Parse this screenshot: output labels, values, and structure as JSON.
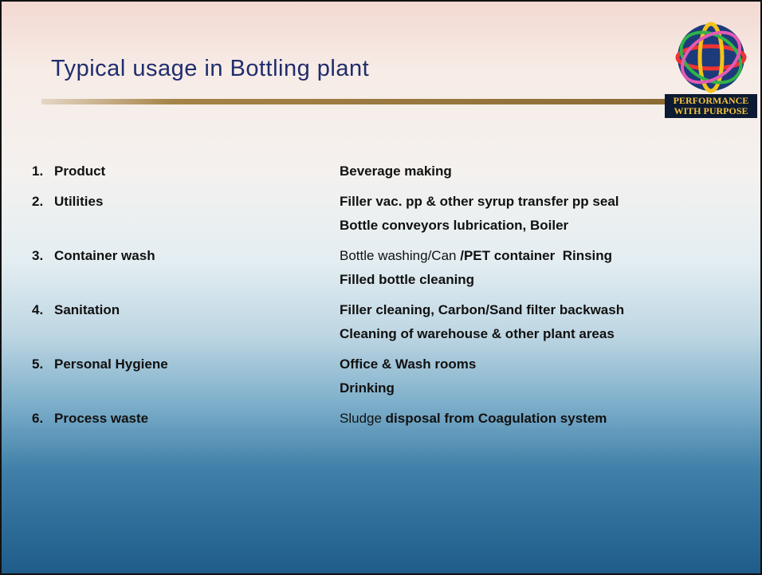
{
  "slide": {
    "title": "Typical usage in Bottling plant",
    "logo": {
      "line1": "PERFORMANCE",
      "line2": "WITH PURPOSE"
    },
    "items": [
      {
        "number": "1.",
        "label": "Product",
        "usage": [
          {
            "bold": "Beverage making"
          }
        ]
      },
      {
        "number": "2.",
        "label": "Utilities",
        "usage": [
          {
            "bold": "Filler vac. pp & other syrup transfer pp seal"
          },
          {
            "bold": "Bottle conveyors lubrication, Boiler"
          }
        ]
      },
      {
        "number": "3.",
        "label": "Container wash",
        "usage": [
          {
            "plain": "Bottle washing/Can",
            "bold": "/PET container  Rinsing"
          },
          {
            "bold": "Filled bottle cleaning"
          }
        ]
      },
      {
        "number": "4.",
        "label": "Sanitation",
        "usage": [
          {
            "bold": "Filler cleaning, Carbon/Sand filter backwash"
          },
          {
            "bold": "Cleaning of warehouse & other plant areas"
          }
        ]
      },
      {
        "number": "5.",
        "label": "Personal Hygiene",
        "usage": [
          {
            "bold": "Office & Wash rooms"
          },
          {
            "bold": "Drinking"
          }
        ]
      },
      {
        "number": "6.",
        "label": "Process waste",
        "usage": [
          {
            "plain": "Sludge",
            "bold": "disposal from Coagulation system"
          }
        ]
      }
    ]
  }
}
